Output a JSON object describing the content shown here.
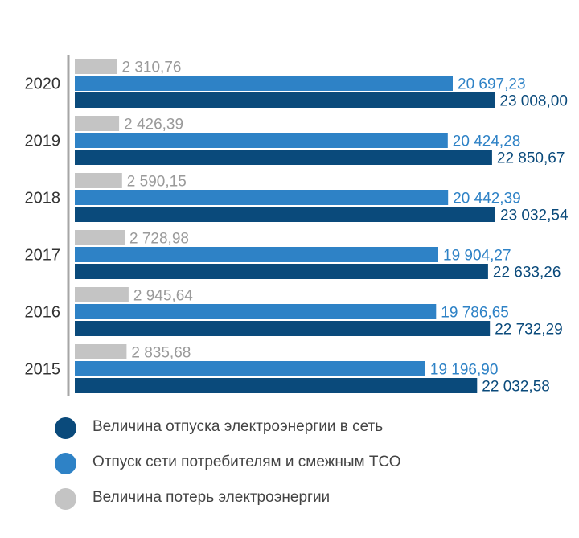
{
  "colors": {
    "supply": "#0a4a7b",
    "consumers": "#2e82c6",
    "losses": "#c4c4c4",
    "axis": "#a6a6a6",
    "year_text": "#333333",
    "losses_text": "#9a9a9a"
  },
  "chart_data": {
    "type": "bar",
    "orientation": "horizontal",
    "categories": [
      "2020",
      "2019",
      "2018",
      "2017",
      "2016",
      "2015"
    ],
    "series": [
      {
        "name": "Величина потерь электроэнергии",
        "values": [
          2310.76,
          2426.39,
          2590.15,
          2728.98,
          2945.64,
          2835.68
        ],
        "labels": [
          "2 310,76",
          "2 426,39",
          "2 590,15",
          "2 728,98",
          "2 945,64",
          "2 835,68"
        ]
      },
      {
        "name": "Отпуск сети потребителям и смежным ТСО",
        "values": [
          20697.23,
          20424.28,
          20442.39,
          19904.27,
          19786.65,
          19196.9
        ],
        "labels": [
          "20 697,23",
          "20 424,28",
          "20 442,39",
          "19 904,27",
          "19 786,65",
          "19 196,90"
        ]
      },
      {
        "name": "Величина отпуска электроэнергии в сеть",
        "values": [
          23008.0,
          22850.67,
          23032.54,
          22633.26,
          22732.29,
          22032.58
        ],
        "labels": [
          "23 008,00",
          "22 850,67",
          "23 032,54",
          "22 633,26",
          "22 732,29",
          "22 032,58"
        ]
      }
    ],
    "xlim": [
      0,
      23032.54
    ],
    "grid": false,
    "legend_position": "bottom"
  },
  "legend": [
    {
      "label": "Величина отпуска электроэнергии в сеть",
      "color": "#0a4a7b"
    },
    {
      "label": "Отпуск сети потребителям и смежным ТСО",
      "color": "#2e82c6"
    },
    {
      "label": "Величина потерь электроэнергии",
      "color": "#c4c4c4"
    }
  ]
}
